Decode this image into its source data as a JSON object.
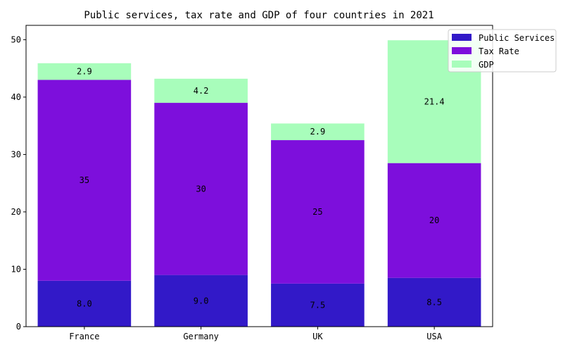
{
  "chart_data": {
    "type": "bar",
    "stacked": true,
    "title": "Public services, tax rate and GDP of four countries in 2021",
    "xlabel": "",
    "ylabel": "",
    "categories": [
      "France",
      "Germany",
      "UK",
      "USA"
    ],
    "ylim": [
      0,
      52.5
    ],
    "yticks": [
      0,
      10,
      20,
      30,
      40,
      50
    ],
    "grid": false,
    "legend_position": "top-right",
    "series": [
      {
        "name": "Public Services",
        "values": [
          8.0,
          9.0,
          7.5,
          8.5
        ],
        "labels": [
          "8.0",
          "9.0",
          "7.5",
          "8.5"
        ],
        "color": "#3219c8"
      },
      {
        "name": "Tax Rate",
        "values": [
          35,
          30,
          25,
          20
        ],
        "labels": [
          "35",
          "30",
          "25",
          "20"
        ],
        "color": "#7d0fdc"
      },
      {
        "name": "GDP",
        "values": [
          2.9,
          4.2,
          2.9,
          21.4
        ],
        "labels": [
          "2.9",
          "4.2",
          "2.9",
          "21.4"
        ],
        "color": "#a8fdbb"
      }
    ]
  }
}
